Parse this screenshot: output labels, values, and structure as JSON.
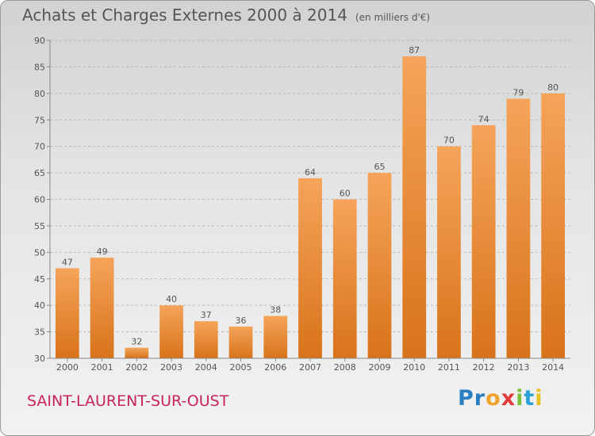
{
  "title": "Achats et Charges Externes 2000 à 2014",
  "subtitle": "(en milliers d'€)",
  "commune": "SAINT-LAURENT-SUR-OUST",
  "logo": {
    "letters": [
      "P",
      "r",
      "o",
      "x",
      "i",
      "t",
      "i"
    ],
    "colors": [
      "#2a7fc1",
      "#2a7fc1",
      "#f0a22a",
      "#e23a3a",
      "#7cbf3a",
      "#2aa0d8",
      "#e8c020"
    ]
  },
  "chart_data": {
    "type": "bar",
    "categories": [
      "2000",
      "2001",
      "2002",
      "2003",
      "2004",
      "2005",
      "2006",
      "2007",
      "2008",
      "2009",
      "2010",
      "2011",
      "2012",
      "2013",
      "2014"
    ],
    "values": [
      47,
      49,
      32,
      40,
      37,
      36,
      38,
      64,
      60,
      65,
      87,
      70,
      74,
      79,
      80
    ],
    "ylim": [
      30,
      90
    ],
    "yticks": [
      30,
      35,
      40,
      45,
      50,
      55,
      60,
      65,
      70,
      75,
      80,
      85,
      90
    ],
    "grid": true,
    "bar_color_top": "#f5a45a",
    "bar_color_bottom": "#d8731a"
  }
}
